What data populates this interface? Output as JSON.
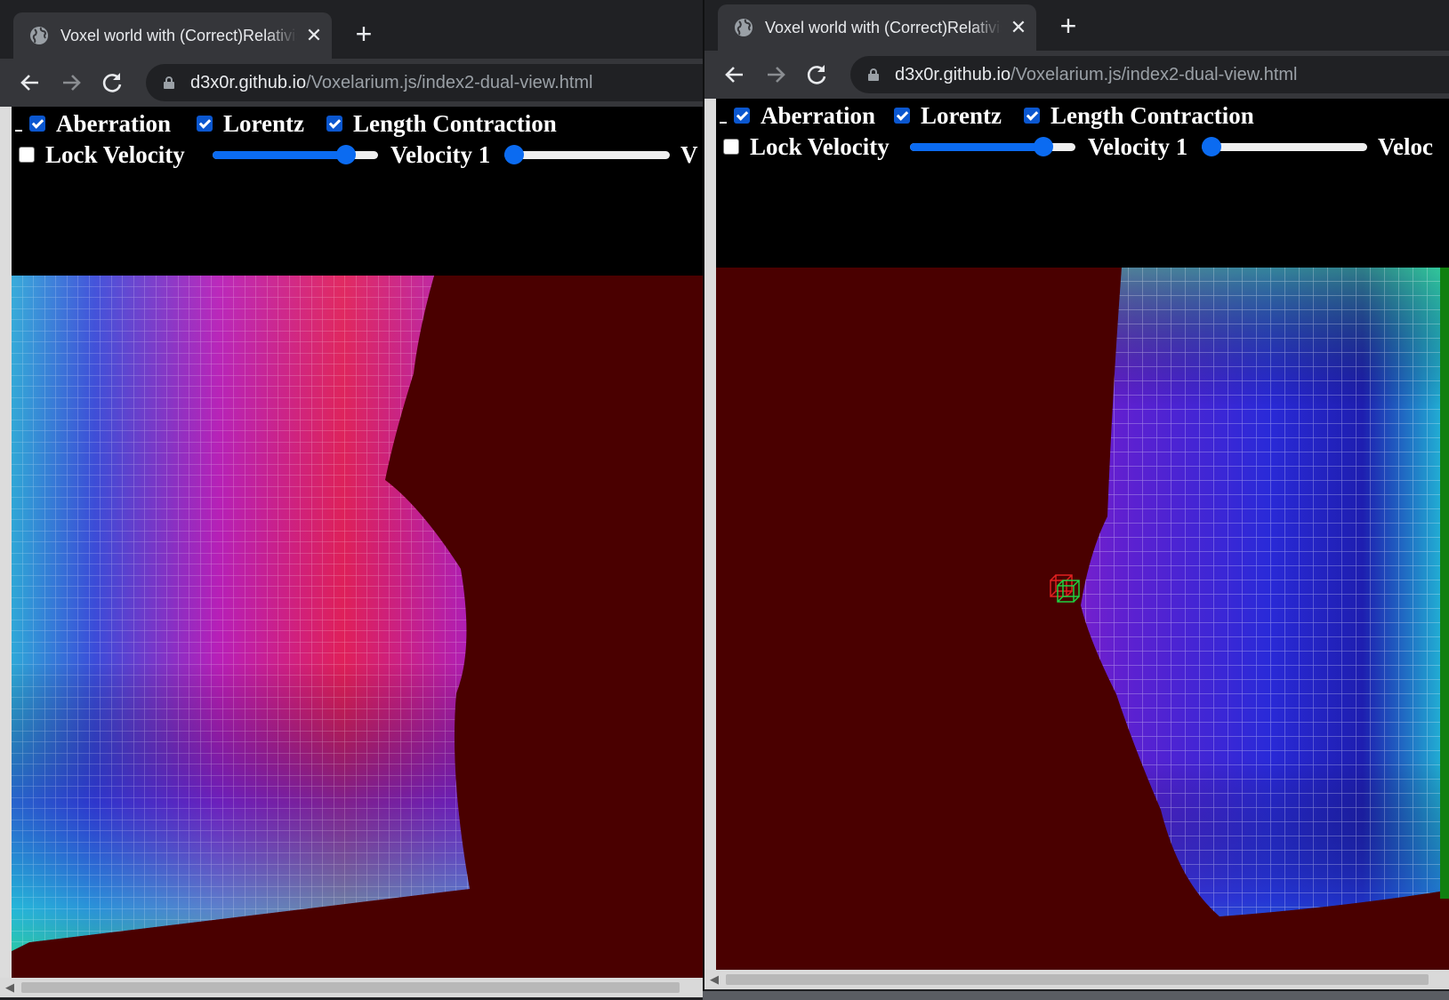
{
  "left_window": {
    "tab_title": "Voxel world with (Correct)Relativistic Effects",
    "tab_close": "✕",
    "new_tab": "+",
    "url_host": "d3x0r.github.io",
    "url_path": "/Voxelarium.js/index2-dual-view.html",
    "controls": {
      "aberration": {
        "label": "Aberration",
        "checked": true
      },
      "lorentz": {
        "label": "Lorentz",
        "checked": true
      },
      "length_contraction": {
        "label": "Length Contraction",
        "checked": true
      },
      "lock_velocity": {
        "label": "Lock Velocity",
        "checked": false
      },
      "velocity_slider_value": 0.85,
      "velocity_1_label": "Velocity 1",
      "velocity_1_slider_value": 0.0,
      "velocity_2_label_visible": "V"
    }
  },
  "right_window": {
    "tab_title": "Voxel world with (Correct)Relativistic Effects",
    "tab_close": "✕",
    "new_tab": "+",
    "url_host": "d3x0r.github.io",
    "url_path": "/Voxelarium.js/index2-dual-view.html",
    "controls": {
      "aberration": {
        "label": "Aberration",
        "checked": true
      },
      "lorentz": {
        "label": "Lorentz",
        "checked": true
      },
      "length_contraction": {
        "label": "Length Contraction",
        "checked": true
      },
      "lock_velocity": {
        "label": "Lock Velocity",
        "checked": false
      },
      "velocity_slider_value": 0.85,
      "velocity_1_label": "Velocity 1",
      "velocity_1_slider_value": 0.0,
      "velocity_2_label_visible": "Veloc"
    }
  },
  "colors": {
    "chrome_dark": "#202124",
    "chrome_tab": "#35363a",
    "scene_background": "#4a0000",
    "accent_blue": "#0b6bf1"
  },
  "icons": {
    "favicon": "globe-icon",
    "back": "arrow-left-icon",
    "forward": "arrow-right-icon",
    "reload": "reload-icon",
    "secure": "lock-icon"
  }
}
